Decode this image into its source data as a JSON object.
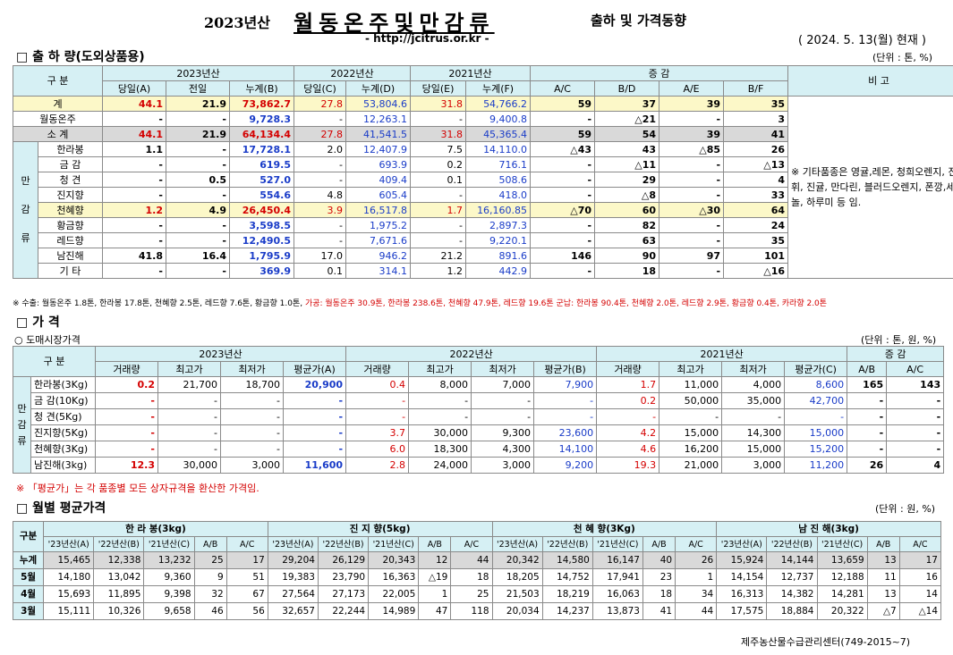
{
  "title": {
    "year": "2023년산",
    "main": "월동온주및만감류",
    "sub": "출하 및 가격동향",
    "url": "- http://jcitrus.or.kr -",
    "date": "( 2024.  5. 13(월) 현재 )"
  },
  "shipment": {
    "section": "□ 출 하 량(도외상품용)",
    "unit": "(단위 : 톤, %)",
    "head": {
      "gubun": "구    분",
      "y2023": "2023년산",
      "y2022": "2022년산",
      "y2021": "2021년산",
      "change": "증    감",
      "remark": "비 고",
      "cols": [
        "당일(A)",
        "전일",
        "누계(B)",
        "당일(C)",
        "누계(D)",
        "당일(E)",
        "누계(F)",
        "A/C",
        "B/D",
        "A/E",
        "B/F"
      ]
    },
    "rows": [
      {
        "label": "계",
        "v": [
          "44.1",
          "21.9",
          "73,862.7",
          "27.8",
          "53,804.6",
          "31.8",
          "54,766.2",
          "59",
          "37",
          "39",
          "35"
        ]
      },
      {
        "label": "월동온주",
        "v": [
          "-",
          "-",
          "9,728.3",
          "-",
          "12,263.1",
          "-",
          "9,400.8",
          "-",
          "△21",
          "-",
          "3"
        ]
      },
      {
        "label": "소    계",
        "v": [
          "44.1",
          "21.9",
          "64,134.4",
          "27.8",
          "41,541.5",
          "31.8",
          "45,365.4",
          "59",
          "54",
          "39",
          "41"
        ]
      },
      {
        "label": "한라봉",
        "v": [
          "1.1",
          "-",
          "17,728.1",
          "2.0",
          "12,407.9",
          "7.5",
          "14,110.0",
          "△43",
          "43",
          "△85",
          "26"
        ]
      },
      {
        "label": "금    감",
        "v": [
          "-",
          "-",
          "619.5",
          "-",
          "693.9",
          "0.2",
          "716.1",
          "-",
          "△11",
          "-",
          "△13"
        ]
      },
      {
        "label": "청    견",
        "v": [
          "-",
          "0.5",
          "527.0",
          "-",
          "409.4",
          "0.1",
          "508.6",
          "-",
          "29",
          "-",
          "4"
        ]
      },
      {
        "label": "진지향",
        "v": [
          "-",
          "-",
          "554.6",
          "4.8",
          "605.4",
          "-",
          "418.0",
          "-",
          "△8",
          "-",
          "33"
        ]
      },
      {
        "label": "천혜향",
        "v": [
          "1.2",
          "4.9",
          "26,450.4",
          "3.9",
          "16,517.8",
          "1.7",
          "16,160.85",
          "△70",
          "60",
          "△30",
          "64"
        ]
      },
      {
        "label": "황금향",
        "v": [
          "-",
          "-",
          "3,598.5",
          "-",
          "1,975.2",
          "-",
          "2,897.3",
          "-",
          "82",
          "-",
          "24"
        ]
      },
      {
        "label": "레드향",
        "v": [
          "-",
          "-",
          "12,490.5",
          "-",
          "7,671.6",
          "-",
          "9,220.1",
          "-",
          "63",
          "-",
          "35"
        ]
      },
      {
        "label": "남진해",
        "v": [
          "41.8",
          "16.4",
          "1,795.9",
          "17.0",
          "946.2",
          "21.2",
          "891.6",
          "146",
          "90",
          "97",
          "101"
        ]
      },
      {
        "label": "기    타",
        "v": [
          "-",
          "-",
          "369.9",
          "0.1",
          "314.1",
          "1.2",
          "442.9",
          "-",
          "18",
          "-",
          "△16"
        ]
      }
    ],
    "side_label": [
      "만",
      "감",
      "류"
    ],
    "remark_text": "※ 기타품종은 영귤,레몬, 청희오렌지, 진지휘, 진귤, 만다린, 블러드오렌지, 폰깡,세미놀, 하루미 등 임.",
    "footnote_a": "※ 수출: 월동온주 1.8톤, 한라봉 17.8톤, 천혜향 2.5톤, 레드향 7.6톤, 황금향 1.0톤, ",
    "footnote_b": "가공: 월동온주 30.9톤, 한라봉 238.6톤, 천혜향 47.9톤, 레드향 19.6톤 ",
    "footnote_c": "군납: 한라봉 90.4톤, 천혜향 2.0톤, 레드향 2.9톤, 황금향 0.4톤, 카라향 2.0톤"
  },
  "price": {
    "section": "□ 가    격",
    "subsection": "○ 도매시장가격",
    "unit": "(단위 : 톤, 원, %)",
    "head": {
      "gubun": "구    분",
      "y2023": "2023년산",
      "y2022": "2022년산",
      "y2021": "2021년산",
      "change": "증    감",
      "cols": [
        "거래량",
        "최고가",
        "최저가",
        "평균가(A)",
        "거래량",
        "최고가",
        "최저가",
        "평균가(B)",
        "거래량",
        "최고가",
        "최저가",
        "평균가(C)",
        "A/B",
        "A/C"
      ]
    },
    "side_label": [
      "만",
      "감",
      "류"
    ],
    "rows": [
      {
        "label": "한라봉(3Kg)",
        "v": [
          "0.2",
          "21,700",
          "18,700",
          "20,900",
          "0.4",
          "8,000",
          "7,000",
          "7,900",
          "1.7",
          "11,000",
          "4,000",
          "8,600",
          "165",
          "143"
        ]
      },
      {
        "label": "금 감(10Kg)",
        "v": [
          "-",
          "-",
          "-",
          "-",
          "-",
          "-",
          "-",
          "-",
          "0.2",
          "50,000",
          "35,000",
          "42,700",
          "-",
          "-"
        ]
      },
      {
        "label": "청  견(5Kg)",
        "v": [
          "-",
          "-",
          "-",
          "-",
          "-",
          "-",
          "-",
          "-",
          "-",
          "-",
          "-",
          "-",
          "-",
          "-"
        ]
      },
      {
        "label": "진지향(5Kg)",
        "v": [
          "-",
          "-",
          "-",
          "-",
          "3.7",
          "30,000",
          "9,300",
          "23,600",
          "4.2",
          "15,000",
          "14,300",
          "15,000",
          "-",
          "-"
        ]
      },
      {
        "label": "천혜향(3Kg)",
        "v": [
          "-",
          "-",
          "-",
          "-",
          "6.0",
          "18,300",
          "4,300",
          "14,100",
          "4.6",
          "16,200",
          "15,000",
          "15,200",
          "-",
          "-"
        ]
      },
      {
        "label": "남진해(3kg)",
        "v": [
          "12.3",
          "30,000",
          "3,000",
          "11,600",
          "2.8",
          "24,000",
          "3,000",
          "9,200",
          "19.3",
          "21,000",
          "3,000",
          "11,200",
          "26",
          "4"
        ]
      }
    ],
    "note": "※ 「평균가」는 각 품종별 모든 상자규격을 환산한 가격임."
  },
  "monthly": {
    "section": "□ 월별 평균가격",
    "unit": "(단위 : 원, %)",
    "gubun": "구분",
    "groups": [
      "한 라 봉(3kg)",
      "진 지 향(5kg)",
      "천 혜 향(3Kg)",
      "남 진 해(3kg)"
    ],
    "cols": [
      "'23년산(A)",
      "'22년산(B)",
      "'21년산(C)",
      "A/B",
      "A/C"
    ],
    "rows": [
      {
        "label": "누계",
        "v": [
          "15,465",
          "12,338",
          "13,232",
          "25",
          "17",
          "29,204",
          "26,129",
          "20,343",
          "12",
          "44",
          "20,342",
          "14,580",
          "16,147",
          "40",
          "26",
          "15,924",
          "14,144",
          "13,659",
          "13",
          "17"
        ]
      },
      {
        "label": "5월",
        "v": [
          "14,180",
          "13,042",
          "9,360",
          "9",
          "51",
          "19,383",
          "23,790",
          "16,363",
          "△19",
          "18",
          "18,205",
          "14,752",
          "17,941",
          "23",
          "1",
          "14,154",
          "12,737",
          "12,188",
          "11",
          "16"
        ]
      },
      {
        "label": "4월",
        "v": [
          "15,693",
          "11,895",
          "9,398",
          "32",
          "67",
          "27,564",
          "27,173",
          "22,005",
          "1",
          "25",
          "21,503",
          "18,219",
          "16,063",
          "18",
          "34",
          "16,313",
          "14,382",
          "14,281",
          "13",
          "14"
        ]
      },
      {
        "label": "3월",
        "v": [
          "15,111",
          "10,326",
          "9,658",
          "46",
          "56",
          "32,657",
          "22,244",
          "14,989",
          "47",
          "118",
          "20,034",
          "14,237",
          "13,873",
          "41",
          "44",
          "17,575",
          "18,884",
          "20,322",
          "△7",
          "△14"
        ]
      }
    ],
    "footer": "제주농산물수급관리센터(749-2015~7)"
  }
}
